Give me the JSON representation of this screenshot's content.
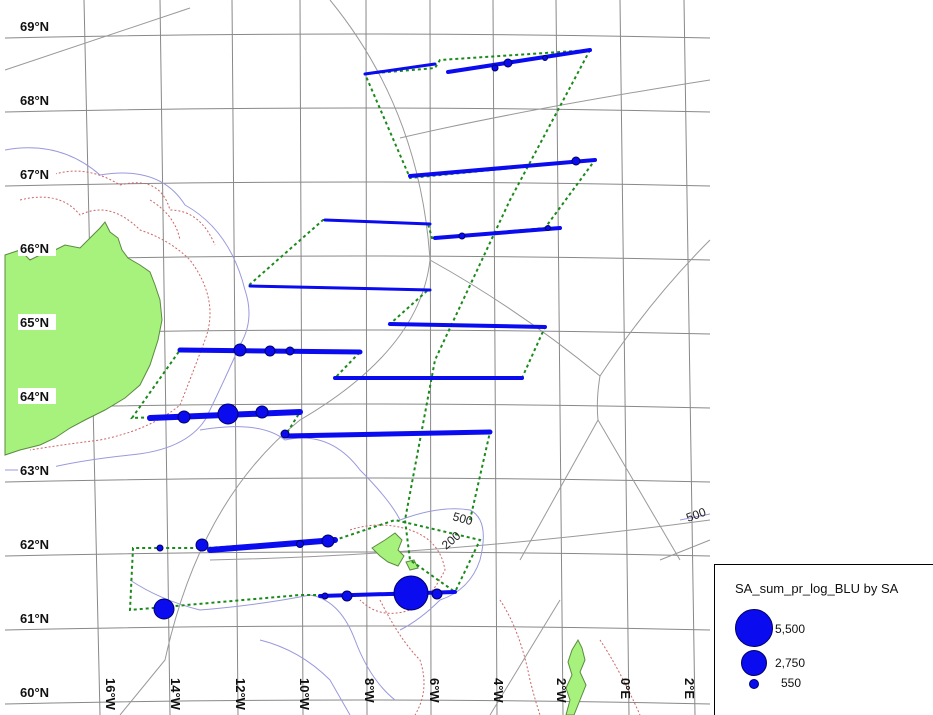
{
  "lat_labels": [
    "69°N",
    "68°N",
    "67°N",
    "66°N",
    "65°N",
    "64°N",
    "63°N",
    "62°N",
    "61°N",
    "60°N"
  ],
  "lon_labels": [
    "16°W",
    "14°W",
    "12°W",
    "10°W",
    "8°W",
    "6°W",
    "4°W",
    "2°W",
    "0°E",
    "2°E"
  ],
  "depth_labels": [
    "500",
    "200",
    "500"
  ],
  "legend": {
    "title": "SA_sum_pr_log_BLU by SA",
    "entries": [
      {
        "label": "5,500",
        "value": 5500
      },
      {
        "label": "2,750",
        "value": 2750
      },
      {
        "label": "550",
        "value": 550
      }
    ]
  },
  "colors": {
    "land": "#a7f27c",
    "bubble": "#0b0bef",
    "track": "#1a8a1a",
    "graticule": "#888888",
    "contour_500": "#9999dd",
    "contour_200": "#cc6666"
  }
}
